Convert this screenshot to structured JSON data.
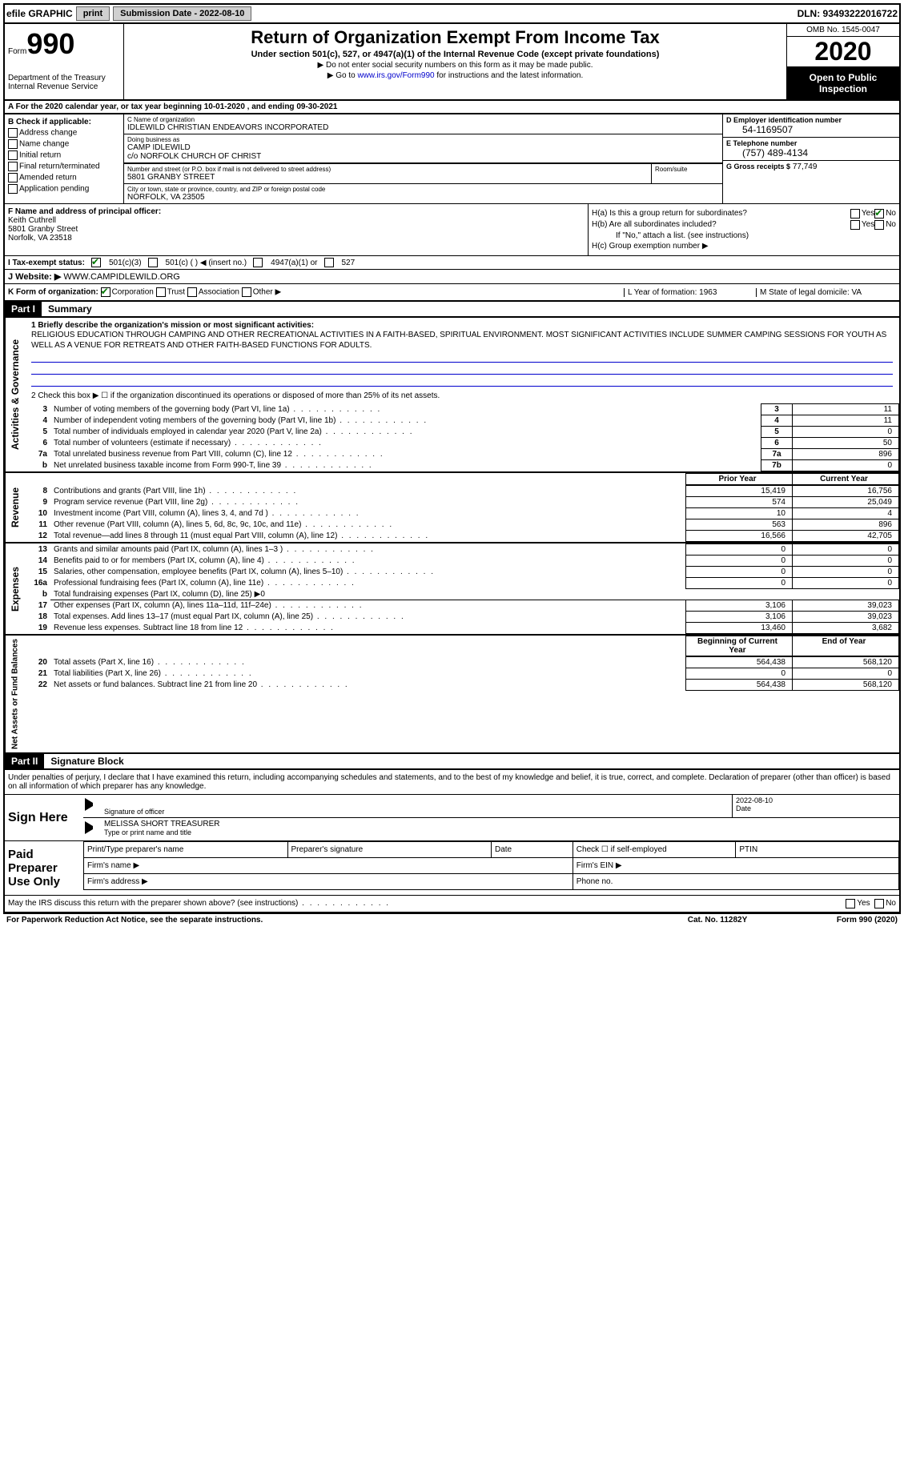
{
  "top": {
    "efile": "efile GRAPHIC",
    "print": "print",
    "submission": "Submission Date - 2022-08-10",
    "dln": "DLN: 93493222016722"
  },
  "header": {
    "form_prefix": "Form",
    "form_num": "990",
    "dept": "Department of the Treasury\nInternal Revenue Service",
    "title": "Return of Organization Exempt From Income Tax",
    "sub": "Under section 501(c), 527, or 4947(a)(1) of the Internal Revenue Code (except private foundations)",
    "arrow1": "▶ Do not enter social security numbers on this form as it may be made public.",
    "arrow2_prefix": "▶ Go to ",
    "arrow2_link": "www.irs.gov/Form990",
    "arrow2_suffix": " for instructions and the latest information.",
    "omb": "OMB No. 1545-0047",
    "year": "2020",
    "open": "Open to Public Inspection"
  },
  "rowA": "A  For the 2020 calendar year, or tax year beginning 10-01-2020    , and ending 09-30-2021",
  "B": {
    "label": "B Check if applicable:",
    "items": [
      "Address change",
      "Name change",
      "Initial return",
      "Final return/terminated",
      "Amended return",
      "Application pending"
    ]
  },
  "C": {
    "name_label": "C Name of organization",
    "name": "IDLEWILD CHRISTIAN ENDEAVORS INCORPORATED",
    "dba_label": "Doing business as",
    "dba": "CAMP IDLEWILD",
    "co": "c/o NORFOLK CHURCH OF CHRIST",
    "street_label": "Number and street (or P.O. box if mail is not delivered to street address)",
    "street": "5801 GRANBY STREET",
    "room_label": "Room/suite",
    "city_label": "City or town, state or province, country, and ZIP or foreign postal code",
    "city": "NORFOLK, VA  23505"
  },
  "D": {
    "ein_label": "D Employer identification number",
    "ein": "54-1169507",
    "phone_label": "E Telephone number",
    "phone": "(757) 489-4134",
    "gross_label": "G Gross receipts $",
    "gross": "77,749"
  },
  "F": {
    "label": "F  Name and address of principal officer:",
    "name": "Keith Cuthrell",
    "street": "5801 Granby Street",
    "city": "Norfolk, VA  23518"
  },
  "H": {
    "a": "H(a)  Is this a group return for subordinates?",
    "b": "H(b)  Are all subordinates included?",
    "b_note": "If \"No,\" attach a list. (see instructions)",
    "c": "H(c)  Group exemption number ▶",
    "yes": "Yes",
    "no": "No"
  },
  "I": {
    "label": "I    Tax-exempt status:",
    "opts": [
      "501(c)(3)",
      "501(c) (  ) ◀ (insert no.)",
      "4947(a)(1) or",
      "527"
    ]
  },
  "J": {
    "label": "J   Website: ▶",
    "value": "WWW.CAMPIDLEWILD.ORG"
  },
  "K": {
    "label": "K Form of organization:",
    "opts": [
      "Corporation",
      "Trust",
      "Association",
      "Other ▶"
    ],
    "L": "L Year of formation: 1963",
    "M": "M State of legal domicile: VA"
  },
  "part1": {
    "header": "Part I",
    "title": "Summary",
    "line1_label": "1   Briefly describe the organization's mission or most significant activities:",
    "mission": "RELIGIOUS EDUCATION THROUGH CAMPING AND OTHER RECREATIONAL ACTIVITIES IN A FAITH-BASED, SPIRITUAL ENVIRONMENT. MOST SIGNIFICANT ACTIVITIES INCLUDE SUMMER CAMPING SESSIONS FOR YOUTH AS WELL AS A VENUE FOR RETREATS AND OTHER FAITH-BASED FUNCTIONS FOR ADULTS.",
    "line2": "2   Check this box ▶ ☐ if the organization discontinued its operations or disposed of more than 25% of its net assets.",
    "sideA": "Activities & Governance",
    "sideR": "Revenue",
    "sideE": "Expenses",
    "sideN": "Net Assets or Fund Balances",
    "rows_gov": [
      {
        "n": "3",
        "d": "Number of voting members of the governing body (Part VI, line 1a)",
        "box": "3",
        "v": "11"
      },
      {
        "n": "4",
        "d": "Number of independent voting members of the governing body (Part VI, line 1b)",
        "box": "4",
        "v": "11"
      },
      {
        "n": "5",
        "d": "Total number of individuals employed in calendar year 2020 (Part V, line 2a)",
        "box": "5",
        "v": "0"
      },
      {
        "n": "6",
        "d": "Total number of volunteers (estimate if necessary)",
        "box": "6",
        "v": "50"
      },
      {
        "n": "7a",
        "d": "Total unrelated business revenue from Part VIII, column (C), line 12",
        "box": "7a",
        "v": "896"
      },
      {
        "n": "b",
        "d": "Net unrelated business taxable income from Form 990-T, line 39",
        "box": "7b",
        "v": "0"
      }
    ],
    "header_prior": "Prior Year",
    "header_current": "Current Year",
    "rows_rev": [
      {
        "n": "8",
        "d": "Contributions and grants (Part VIII, line 1h)",
        "p": "15,419",
        "c": "16,756"
      },
      {
        "n": "9",
        "d": "Program service revenue (Part VIII, line 2g)",
        "p": "574",
        "c": "25,049"
      },
      {
        "n": "10",
        "d": "Investment income (Part VIII, column (A), lines 3, 4, and 7d )",
        "p": "10",
        "c": "4"
      },
      {
        "n": "11",
        "d": "Other revenue (Part VIII, column (A), lines 5, 6d, 8c, 9c, 10c, and 11e)",
        "p": "563",
        "c": "896"
      },
      {
        "n": "12",
        "d": "Total revenue—add lines 8 through 11 (must equal Part VIII, column (A), line 12)",
        "p": "16,566",
        "c": "42,705"
      }
    ],
    "rows_exp": [
      {
        "n": "13",
        "d": "Grants and similar amounts paid (Part IX, column (A), lines 1–3 )",
        "p": "0",
        "c": "0"
      },
      {
        "n": "14",
        "d": "Benefits paid to or for members (Part IX, column (A), line 4)",
        "p": "0",
        "c": "0"
      },
      {
        "n": "15",
        "d": "Salaries, other compensation, employee benefits (Part IX, column (A), lines 5–10)",
        "p": "0",
        "c": "0"
      },
      {
        "n": "16a",
        "d": "Professional fundraising fees (Part IX, column (A), line 11e)",
        "p": "0",
        "c": "0"
      },
      {
        "n": "b",
        "d": "Total fundraising expenses (Part IX, column (D), line 25) ▶0",
        "p": "",
        "c": ""
      },
      {
        "n": "17",
        "d": "Other expenses (Part IX, column (A), lines 11a–11d, 11f–24e)",
        "p": "3,106",
        "c": "39,023"
      },
      {
        "n": "18",
        "d": "Total expenses. Add lines 13–17 (must equal Part IX, column (A), line 25)",
        "p": "3,106",
        "c": "39,023"
      },
      {
        "n": "19",
        "d": "Revenue less expenses. Subtract line 18 from line 12",
        "p": "13,460",
        "c": "3,682"
      }
    ],
    "header_begin": "Beginning of Current Year",
    "header_end": "End of Year",
    "rows_net": [
      {
        "n": "20",
        "d": "Total assets (Part X, line 16)",
        "p": "564,438",
        "c": "568,120"
      },
      {
        "n": "21",
        "d": "Total liabilities (Part X, line 26)",
        "p": "0",
        "c": "0"
      },
      {
        "n": "22",
        "d": "Net assets or fund balances. Subtract line 21 from line 20",
        "p": "564,438",
        "c": "568,120"
      }
    ]
  },
  "part2": {
    "header": "Part II",
    "title": "Signature Block",
    "penalties": "Under penalties of perjury, I declare that I have examined this return, including accompanying schedules and statements, and to the best of my knowledge and belief, it is true, correct, and complete. Declaration of preparer (other than officer) is based on all information of which preparer has any knowledge.",
    "sign_here": "Sign Here",
    "sig_officer": "Signature of officer",
    "date_label": "Date",
    "date": "2022-08-10",
    "name_title": "MELISSA SHORT TREASURER",
    "type_label": "Type or print name and title",
    "paid": "Paid Preparer Use Only",
    "prep_name": "Print/Type preparer's name",
    "prep_sig": "Preparer's signature",
    "prep_date": "Date",
    "check_self": "Check ☐ if self-employed",
    "ptin": "PTIN",
    "firm_name": "Firm's name  ▶",
    "firm_ein": "Firm's EIN ▶",
    "firm_addr": "Firm's address ▶",
    "phone": "Phone no.",
    "discuss": "May the IRS discuss this return with the preparer shown above? (see instructions)"
  },
  "footer": {
    "left": "For Paperwork Reduction Act Notice, see the separate instructions.",
    "mid": "Cat. No. 11282Y",
    "right": "Form 990 (2020)"
  }
}
